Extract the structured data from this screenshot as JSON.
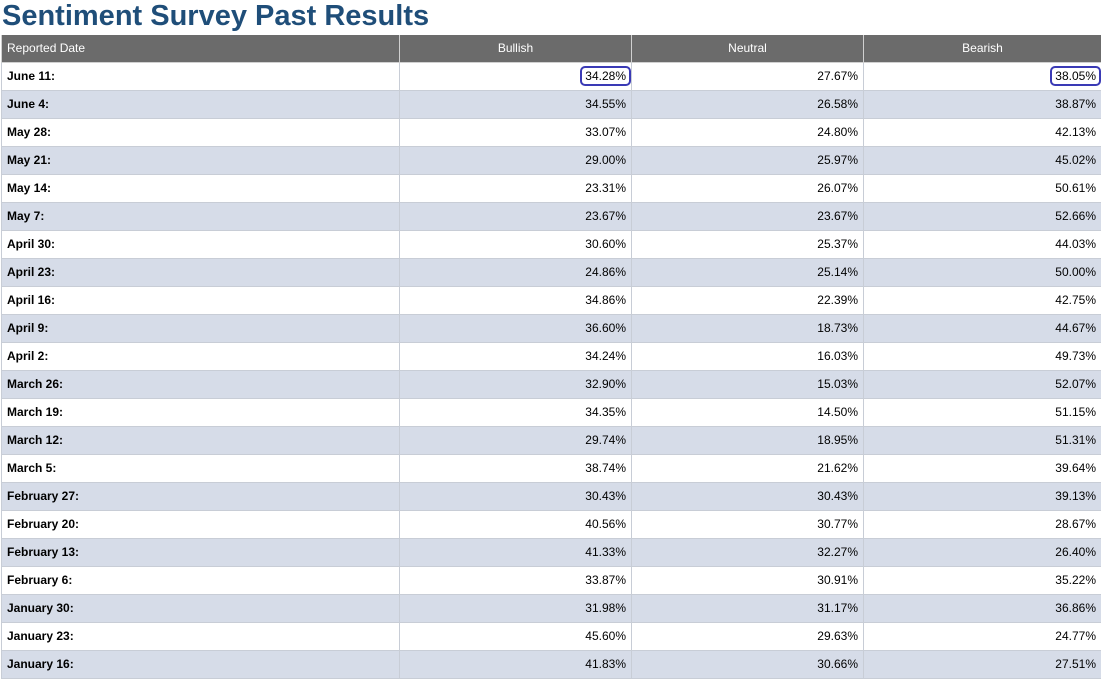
{
  "page": {
    "title": "Sentiment Survey Past Results"
  },
  "table": {
    "headers": {
      "date": "Reported Date",
      "bullish": "Bullish",
      "neutral": "Neutral",
      "bearish": "Bearish"
    },
    "rows": [
      {
        "date": "June 11:",
        "bullish": "34.28%",
        "neutral": "27.67%",
        "bearish": "38.05%",
        "highlighted": [
          "bullish",
          "bearish"
        ]
      },
      {
        "date": "June 4:",
        "bullish": "34.55%",
        "neutral": "26.58%",
        "bearish": "38.87%"
      },
      {
        "date": "May 28:",
        "bullish": "33.07%",
        "neutral": "24.80%",
        "bearish": "42.13%"
      },
      {
        "date": "May 21:",
        "bullish": "29.00%",
        "neutral": "25.97%",
        "bearish": "45.02%"
      },
      {
        "date": "May 14:",
        "bullish": "23.31%",
        "neutral": "26.07%",
        "bearish": "50.61%"
      },
      {
        "date": "May 7:",
        "bullish": "23.67%",
        "neutral": "23.67%",
        "bearish": "52.66%"
      },
      {
        "date": "April 30:",
        "bullish": "30.60%",
        "neutral": "25.37%",
        "bearish": "44.03%"
      },
      {
        "date": "April 23:",
        "bullish": "24.86%",
        "neutral": "25.14%",
        "bearish": "50.00%"
      },
      {
        "date": "April 16:",
        "bullish": "34.86%",
        "neutral": "22.39%",
        "bearish": "42.75%"
      },
      {
        "date": "April 9:",
        "bullish": "36.60%",
        "neutral": "18.73%",
        "bearish": "44.67%"
      },
      {
        "date": "April 2:",
        "bullish": "34.24%",
        "neutral": "16.03%",
        "bearish": "49.73%"
      },
      {
        "date": "March 26:",
        "bullish": "32.90%",
        "neutral": "15.03%",
        "bearish": "52.07%"
      },
      {
        "date": "March 19:",
        "bullish": "34.35%",
        "neutral": "14.50%",
        "bearish": "51.15%"
      },
      {
        "date": "March 12:",
        "bullish": "29.74%",
        "neutral": "18.95%",
        "bearish": "51.31%"
      },
      {
        "date": "March 5:",
        "bullish": "38.74%",
        "neutral": "21.62%",
        "bearish": "39.64%"
      },
      {
        "date": "February 27:",
        "bullish": "30.43%",
        "neutral": "30.43%",
        "bearish": "39.13%"
      },
      {
        "date": "February 20:",
        "bullish": "40.56%",
        "neutral": "30.77%",
        "bearish": "28.67%"
      },
      {
        "date": "February 13:",
        "bullish": "41.33%",
        "neutral": "32.27%",
        "bearish": "26.40%"
      },
      {
        "date": "February 6:",
        "bullish": "33.87%",
        "neutral": "30.91%",
        "bearish": "35.22%"
      },
      {
        "date": "January 30:",
        "bullish": "31.98%",
        "neutral": "31.17%",
        "bearish": "36.86%"
      },
      {
        "date": "January 23:",
        "bullish": "45.60%",
        "neutral": "29.63%",
        "bearish": "24.77%"
      },
      {
        "date": "January 16:",
        "bullish": "41.83%",
        "neutral": "30.66%",
        "bearish": "27.51%"
      }
    ]
  },
  "colors": {
    "title": "#1f4e79",
    "header_bg": "#6b6b6b",
    "row_alt_bg": "#d6dce8",
    "highlight_ring": "#3a3ab5"
  }
}
